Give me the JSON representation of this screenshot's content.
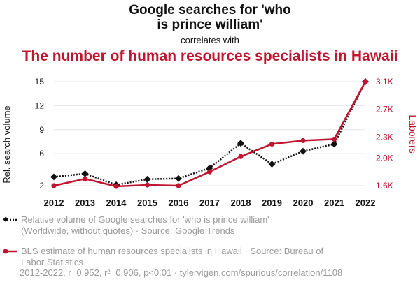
{
  "header": {
    "title": "Google searches for 'who\nis prince william'",
    "title_line1": "Google searches for 'who",
    "title_line2": "is prince william'",
    "subtitle": "correlates with",
    "title2": "The number of human resources specialists in Hawaii"
  },
  "chart_data": {
    "type": "line",
    "x": [
      2012,
      2013,
      2014,
      2015,
      2016,
      2017,
      2018,
      2019,
      2020,
      2021,
      2022
    ],
    "y_left_label": "Rel. search volume",
    "y_right_label": "Laborers",
    "y_left_ticks": [
      2,
      6,
      9,
      12,
      15
    ],
    "y_left_ticklabels": [
      "2",
      "6",
      "9",
      "12",
      "15"
    ],
    "y_right_ticks": [
      1600,
      2000,
      2300,
      2700,
      3100
    ],
    "y_right_ticklabels": [
      "1.6K",
      "2.0K",
      "2.3K",
      "2.7K",
      "3.1K"
    ],
    "y_left_range": [
      2,
      15
    ],
    "y_right_range": [
      1600,
      3100
    ],
    "series": [
      {
        "name": "Relative volume of Google searches for 'who is prince william' (Worldwide, without quotes) · Source: Google Trends",
        "axis": "left",
        "color": "#111111",
        "style": "dotted",
        "marker": "diamond",
        "values": [
          3.1,
          3.5,
          2.1,
          2.8,
          2.9,
          4.2,
          7.3,
          4.7,
          6.3,
          7.2,
          15
        ]
      },
      {
        "name": "BLS estimate of human resources specialists in Hawaii · Source: Bureau of Labor Statistics",
        "axis": "right",
        "color": "#c0152f",
        "style": "solid",
        "marker": "circle",
        "values": [
          1600,
          1700,
          1590,
          1610,
          1600,
          1800,
          2020,
          2200,
          2250,
          2270,
          3100
        ]
      }
    ],
    "grid": true
  },
  "legend": {
    "item1_line1": "Relative volume of Google searches for 'who is prince william'",
    "item1_line2": "(Worldwide, without quotes) · Source: Google Trends",
    "item2_line1": "BLS estimate of human resources specialists in Hawaii · Source: Bureau of",
    "item2_line2": "Labor Statistics"
  },
  "footer": "2012-2022, r=0.952, r²=0.906, p<0.01 · tylervigen.com/spurious/correlation/1108"
}
